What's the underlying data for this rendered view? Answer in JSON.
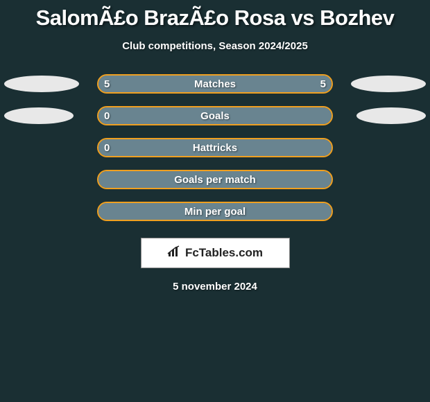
{
  "title": "SalomÃ£o BrazÃ£o Rosa vs Bozhev",
  "subtitle": "Club competitions, Season 2024/2025",
  "background_color": "#1a2f33",
  "bar_border_color": "#f0a020",
  "bar_fill_color": "#8ca8b8",
  "ellipse_color": "#e8e8e8",
  "text_color": "#ffffff",
  "rows": [
    {
      "label": "Matches",
      "left_value": "5",
      "right_value": "5",
      "left_fill_pct": 50,
      "right_fill_pct": 50,
      "left_ellipse_width": 108,
      "right_ellipse_width": 108,
      "show_left_ellipse": true,
      "show_right_ellipse": true
    },
    {
      "label": "Goals",
      "left_value": "0",
      "right_value": "",
      "left_fill_pct": 100,
      "right_fill_pct": 0,
      "left_ellipse_width": 100,
      "right_ellipse_width": 100,
      "show_left_ellipse": true,
      "show_right_ellipse": true
    },
    {
      "label": "Hattricks",
      "left_value": "0",
      "right_value": "",
      "left_fill_pct": 100,
      "right_fill_pct": 0,
      "left_ellipse_width": 0,
      "right_ellipse_width": 0,
      "show_left_ellipse": false,
      "show_right_ellipse": false
    },
    {
      "label": "Goals per match",
      "left_value": "",
      "right_value": "",
      "left_fill_pct": 100,
      "right_fill_pct": 0,
      "left_ellipse_width": 0,
      "right_ellipse_width": 0,
      "show_left_ellipse": false,
      "show_right_ellipse": false
    },
    {
      "label": "Min per goal",
      "left_value": "",
      "right_value": "",
      "left_fill_pct": 100,
      "right_fill_pct": 0,
      "left_ellipse_width": 0,
      "right_ellipse_width": 0,
      "show_left_ellipse": false,
      "show_right_ellipse": false
    }
  ],
  "footer": {
    "brand": "FcTables.com",
    "icon": "chart-bar-icon"
  },
  "date": "5 november 2024"
}
